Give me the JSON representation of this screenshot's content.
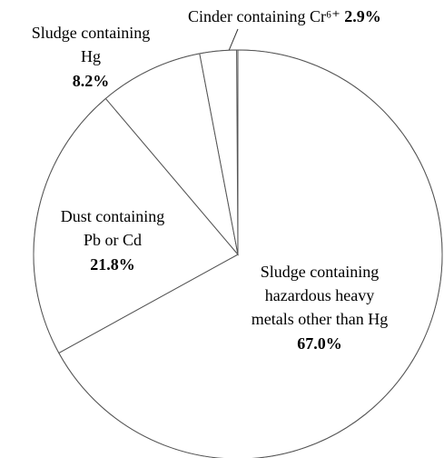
{
  "chart_data": {
    "type": "pie",
    "labels": [
      [
        "Sludge containing",
        "hazardous heavy",
        "metals other than Hg"
      ],
      [
        "Dust containing",
        "Pb or Cd"
      ],
      [
        "Sludge containing",
        "Hg"
      ],
      [
        "Cinder containing Cr⁶⁺"
      ]
    ],
    "values": [
      67.0,
      21.8,
      8.2,
      2.9
    ],
    "value_labels": [
      "67.0%",
      "21.8%",
      "8.2%",
      "2.9%"
    ],
    "color": "#ffffff",
    "stroke": "#555555"
  }
}
